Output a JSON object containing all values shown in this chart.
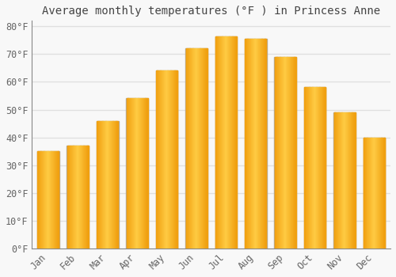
{
  "title": "Average monthly temperatures (°F ) in Princess Anne",
  "months": [
    "Jan",
    "Feb",
    "Mar",
    "Apr",
    "May",
    "Jun",
    "Jul",
    "Aug",
    "Sep",
    "Oct",
    "Nov",
    "Dec"
  ],
  "values": [
    35,
    37,
    46,
    54,
    64,
    72,
    76.5,
    75.5,
    69,
    58,
    49,
    40
  ],
  "bar_color_center": "#FFCC44",
  "bar_color_edge": "#F0A010",
  "bar_border_color": "#AAAAAA",
  "ylim": [
    0,
    82
  ],
  "yticks": [
    0,
    10,
    20,
    30,
    40,
    50,
    60,
    70,
    80
  ],
  "ytick_labels": [
    "0°F",
    "10°F",
    "20°F",
    "30°F",
    "40°F",
    "50°F",
    "60°F",
    "70°F",
    "80°F"
  ],
  "background_color": "#f8f8f8",
  "grid_color": "#e0e0e0",
  "title_fontsize": 10,
  "tick_fontsize": 8.5,
  "bar_width": 0.72
}
